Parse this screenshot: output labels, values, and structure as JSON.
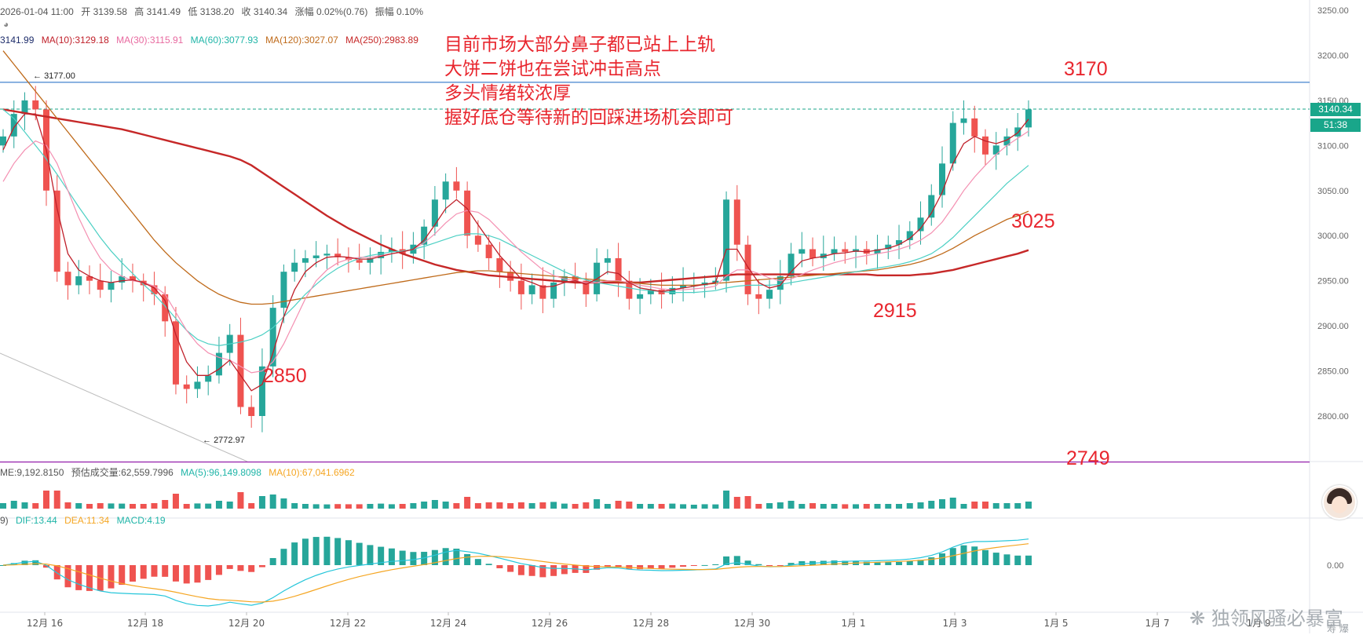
{
  "header": {
    "datetime": "2026-01-04 11:00",
    "open_label": "开",
    "open": "3139.58",
    "high_label": "高",
    "high": "3141.49",
    "low_label": "低",
    "low": "3138.20",
    "close_label": "收",
    "close": "3140.34",
    "change_label": "涨幅",
    "change": "0.02%(0.76)",
    "amp_label": "振幅",
    "amp": "0.10%"
  },
  "ma_line": {
    "ma5": "3141.99",
    "ma10": "MA(10):3129.18",
    "ma30": "MA(30):3115.91",
    "ma60": "MA(60):3077.93",
    "ma120": "MA(120):3027.07",
    "ma250": "MA(250):2983.89"
  },
  "volume_header": {
    "vol": "ME:9,192.8150",
    "est": "预估成交量:62,559.7996",
    "ma5": "MA(5):96,149.8098",
    "ma10": "MA(10):67,041.6962"
  },
  "macd_header": {
    "params": "9)",
    "dif": "DIF:13.44",
    "dea": "DEA:11.34",
    "macd": "MACD:4.19"
  },
  "annotation_lines": [
    "目前市场大部分鼻子都已站上上轨",
    "大饼二饼也在尝试冲击高点",
    "多头情绪较浓厚",
    "握好底仓等待新的回踩进场机会即可"
  ],
  "labels": {
    "l3170": "3170",
    "l3025": "3025",
    "l2915": "2915",
    "l2850": "2850",
    "l2749": "2749"
  },
  "markers": {
    "high": "3177.00",
    "low": "2772.97"
  },
  "price_tag": {
    "price": "3140.34",
    "countdown": "51:38"
  },
  "watermark": "独领风骚必暴富",
  "watermark_sub": "寿 爆",
  "colors": {
    "up": "#26a69a",
    "down": "#ef5350",
    "ma5": "#1e2d6b",
    "ma10": "#c0202a",
    "ma30": "#f48fb1",
    "ma60": "#4dd0c4",
    "ma120": "#bf6a1a",
    "ma250": "#c62828",
    "dif": "#26c6da",
    "dea": "#f5a623",
    "hline_3170": "#1565c0",
    "hline_2749": "#9c27b0",
    "current_price": "#19a68a"
  },
  "chart_data": {
    "type": "line",
    "title": "",
    "y_ticks": [
      3250,
      3200,
      3150,
      3100,
      3050,
      3000,
      2950,
      2900,
      2850,
      2800
    ],
    "y_tick_labels": [
      "3250.00",
      "3200.00",
      "3150.00",
      "3100.00",
      "3050.00",
      "3000.00",
      "2950.00",
      "2900.00",
      "2850.00",
      "2800.00"
    ],
    "ylim": [
      2750,
      3262
    ],
    "macd_tick_label": "0.00",
    "x_tick_labels": [
      "12月 16",
      "12月 18",
      "12月 20",
      "12月 22",
      "12月 24",
      "12月 26",
      "12月 28",
      "12月 30",
      "1月 1",
      "1月 3",
      "1月 5",
      "1月 7",
      "1月 9"
    ],
    "horizontal_levels": [
      3170,
      2749
    ],
    "current_price": 3140.34,
    "close_series": [
      3110,
      3135,
      3150,
      3140,
      3050,
      2960,
      2945,
      2955,
      2950,
      2940,
      2948,
      2955,
      2950,
      2945,
      2935,
      2905,
      2835,
      2830,
      2838,
      2845,
      2870,
      2890,
      2810,
      2800,
      2855,
      2920,
      2960,
      2970,
      2975,
      2978,
      2980,
      2976,
      2973,
      2970,
      2975,
      2982,
      2985,
      2980,
      2990,
      3010,
      3040,
      3060,
      3050,
      3000,
      2990,
      2975,
      2960,
      2950,
      2935,
      2945,
      2930,
      2948,
      2955,
      2950,
      2935,
      2970,
      2975,
      2950,
      2930,
      2935,
      2940,
      2935,
      2942,
      2945,
      2945,
      2948,
      2950,
      3040,
      2990,
      2935,
      2930,
      2940,
      2955,
      2980,
      2985,
      2975,
      2980,
      2985,
      2982,
      2985,
      2980,
      2985,
      2990,
      2995,
      3005,
      3020,
      3045,
      3080,
      3125,
      3130,
      3110,
      3090,
      3100,
      3110,
      3120,
      3140
    ],
    "ma10_series": [
      3095,
      3120,
      3135,
      3135,
      3095,
      3030,
      2980,
      2962,
      2955,
      2950,
      2948,
      2950,
      2951,
      2948,
      2942,
      2928,
      2890,
      2860,
      2845,
      2845,
      2852,
      2862,
      2845,
      2828,
      2835,
      2870,
      2910,
      2940,
      2960,
      2970,
      2976,
      2977,
      2976,
      2974,
      2974,
      2977,
      2980,
      2982,
      2985,
      2995,
      3012,
      3030,
      3040,
      3030,
      3012,
      2995,
      2978,
      2965,
      2952,
      2948,
      2943,
      2944,
      2948,
      2950,
      2946,
      2952,
      2960,
      2958,
      2948,
      2942,
      2940,
      2938,
      2940,
      2942,
      2944,
      2946,
      2948,
      2985,
      2985,
      2965,
      2948,
      2942,
      2945,
      2960,
      2972,
      2975,
      2977,
      2980,
      2981,
      2983,
      2982,
      2984,
      2986,
      2990,
      2997,
      3008,
      3025,
      3048,
      3080,
      3102,
      3110,
      3105,
      3102,
      3106,
      3114,
      3129.18
    ],
    "ma30_series": [
      3060,
      3080,
      3095,
      3105,
      3100,
      3080,
      3050,
      3020,
      2995,
      2975,
      2962,
      2955,
      2950,
      2948,
      2944,
      2935,
      2915,
      2895,
      2880,
      2870,
      2865,
      2862,
      2855,
      2848,
      2850,
      2860,
      2880,
      2905,
      2930,
      2950,
      2962,
      2970,
      2974,
      2976,
      2976,
      2978,
      2980,
      2982,
      2985,
      2992,
      3002,
      3014,
      3024,
      3028,
      3026,
      3018,
      3006,
      2994,
      2982,
      2972,
      2962,
      2956,
      2952,
      2950,
      2948,
      2948,
      2950,
      2950,
      2948,
      2945,
      2943,
      2941,
      2940,
      2940,
      2941,
      2942,
      2944,
      2955,
      2962,
      2962,
      2958,
      2953,
      2950,
      2952,
      2957,
      2962,
      2966,
      2970,
      2973,
      2976,
      2978,
      2980,
      2982,
      2985,
      2989,
      2995,
      3003,
      3015,
      3032,
      3050,
      3065,
      3078,
      3090,
      3100,
      3108,
      3115.91
    ],
    "ma60_series": [
      3140,
      3130,
      3115,
      3100,
      3085,
      3068,
      3050,
      3032,
      3015,
      2998,
      2983,
      2970,
      2958,
      2946,
      2935,
      2922,
      2908,
      2895,
      2885,
      2880,
      2878,
      2880,
      2882,
      2885,
      2890,
      2898,
      2910,
      2922,
      2935,
      2946,
      2956,
      2964,
      2970,
      2975,
      2978,
      2980,
      2982,
      2983,
      2985,
      2988,
      2992,
      2996,
      3000,
      3002,
      3002,
      3000,
      2996,
      2990,
      2984,
      2978,
      2972,
      2966,
      2960,
      2955,
      2951,
      2948,
      2946,
      2944,
      2942,
      2940,
      2939,
      2938,
      2937,
      2937,
      2937,
      2938,
      2939,
      2942,
      2944,
      2945,
      2945,
      2945,
      2946,
      2948,
      2950,
      2952,
      2954,
      2956,
      2958,
      2960,
      2962,
      2964,
      2966,
      2968,
      2971,
      2975,
      2980,
      2988,
      2998,
      3010,
      3022,
      3034,
      3046,
      3058,
      3068,
      3077.93
    ],
    "ma120_series": [
      3205,
      3190,
      3175,
      3160,
      3145,
      3130,
      3115,
      3100,
      3085,
      3070,
      3055,
      3040,
      3025,
      3010,
      2995,
      2982,
      2970,
      2960,
      2950,
      2942,
      2935,
      2930,
      2926,
      2924,
      2924,
      2925,
      2927,
      2929,
      2931,
      2933,
      2935,
      2937,
      2939,
      2941,
      2943,
      2945,
      2947,
      2949,
      2951,
      2953,
      2955,
      2957,
      2959,
      2960,
      2961,
      2961,
      2960,
      2959,
      2958,
      2957,
      2956,
      2955,
      2954,
      2953,
      2952,
      2951,
      2950,
      2949,
      2948,
      2947,
      2946,
      2945,
      2945,
      2945,
      2945,
      2946,
      2947,
      2948,
      2949,
      2950,
      2951,
      2952,
      2953,
      2954,
      2955,
      2956,
      2957,
      2958,
      2959,
      2960,
      2961,
      2962,
      2964,
      2966,
      2968,
      2971,
      2975,
      2980,
      2986,
      2993,
      3000,
      3006,
      3012,
      3018,
      3022,
      3027.07
    ],
    "ma250_series": [
      3140,
      3138,
      3136,
      3134,
      3132,
      3130,
      3128,
      3126,
      3124,
      3122,
      3120,
      3118,
      3115,
      3112,
      3109,
      3106,
      3103,
      3100,
      3097,
      3094,
      3091,
      3088,
      3084,
      3078,
      3070,
      3062,
      3054,
      3046,
      3038,
      3030,
      3022,
      3015,
      3008,
      3002,
      2996,
      2990,
      2985,
      2980,
      2976,
      2972,
      2968,
      2965,
      2962,
      2960,
      2958,
      2956,
      2955,
      2954,
      2953,
      2952,
      2951,
      2950,
      2949,
      2948,
      2948,
      2948,
      2948,
      2948,
      2948,
      2948,
      2949,
      2950,
      2951,
      2952,
      2953,
      2954,
      2955,
      2956,
      2957,
      2957,
      2957,
      2957,
      2957,
      2957,
      2957,
      2957,
      2957,
      2957,
      2957,
      2957,
      2957,
      2956,
      2956,
      2956,
      2956,
      2957,
      2958,
      2960,
      2962,
      2965,
      2968,
      2971,
      2974,
      2977,
      2980,
      2983.89
    ]
  }
}
